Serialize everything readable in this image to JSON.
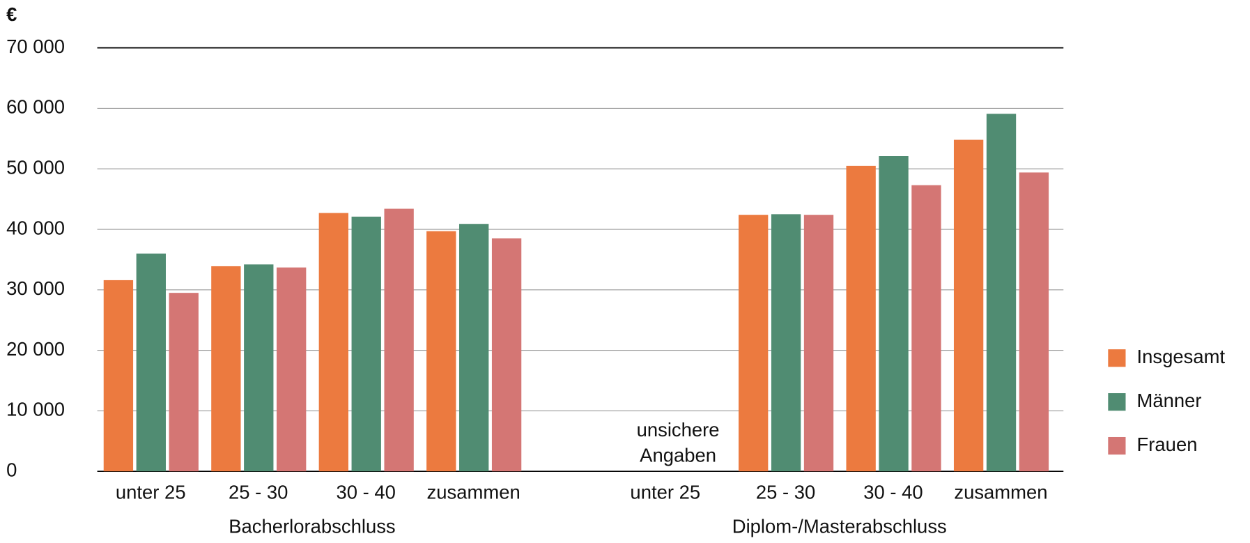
{
  "chart_data": {
    "type": "bar",
    "y_label": "€",
    "group_labels": [
      "Bacherlorabschluss",
      "Diplom-/Masterabschluss"
    ],
    "categories": [
      "unter 25",
      "25 - 30",
      "30 - 40",
      "zusammen",
      "unter 25",
      "25 - 30",
      "30 - 40",
      "zusammen"
    ],
    "series": [
      {
        "name": "Insgesamt",
        "color": "#ec7a3f",
        "values": [
          31600,
          33900,
          42700,
          39700,
          null,
          42400,
          50500,
          54800
        ]
      },
      {
        "name": "Männer",
        "color": "#508c72",
        "values": [
          36000,
          34200,
          42100,
          40900,
          null,
          42500,
          52100,
          59100
        ]
      },
      {
        "name": "Frauen",
        "color": "#d47674",
        "values": [
          29500,
          33700,
          43400,
          38500,
          null,
          42400,
          47300,
          49400
        ]
      }
    ],
    "annotation": "unsichere Angaben",
    "ylim": [
      0,
      70000
    ],
    "yticks": [
      0,
      {
        "value": 10000,
        "label": "10 000"
      },
      {
        "value": 20000,
        "label": "20 000"
      },
      {
        "value": 30000,
        "label": "30 000"
      },
      {
        "value": 40000,
        "label": "40 000"
      },
      {
        "value": 50000,
        "label": "50 000"
      },
      {
        "value": 60000,
        "label": "60 000"
      },
      {
        "value": 70000,
        "label": "70 000"
      }
    ],
    "grid": true,
    "legend": "right"
  }
}
